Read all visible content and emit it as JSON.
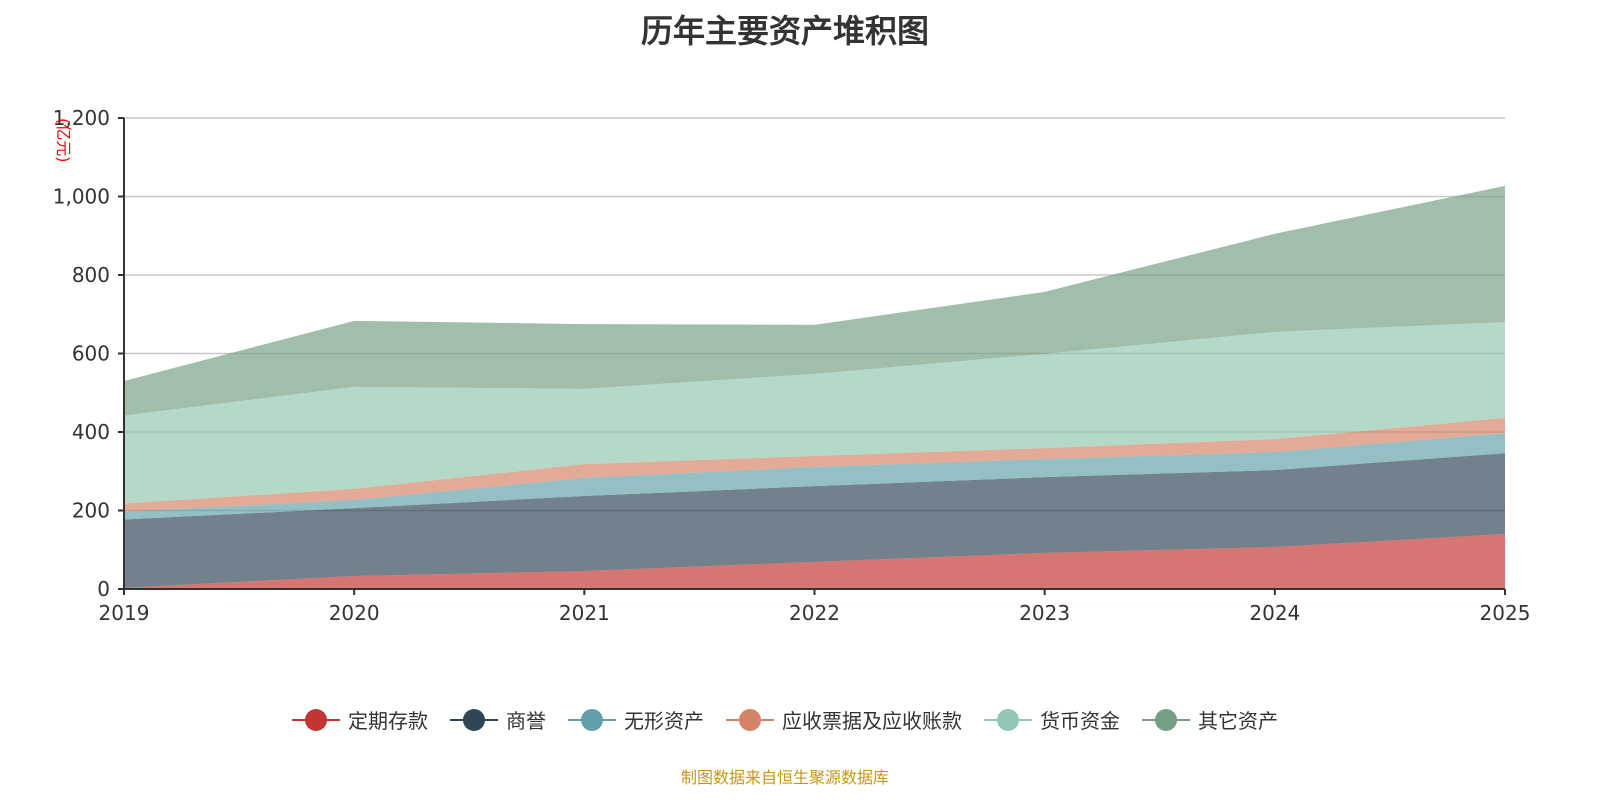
{
  "title": "历年主要资产堆积图",
  "source": "制图数据来自恒生聚源数据库",
  "chart_data": {
    "type": "area",
    "stacked": true,
    "title": "历年主要资产堆积图",
    "ylabel": "(亿元)",
    "ylim": [
      0,
      1200
    ],
    "yticks": [
      0,
      200,
      400,
      600,
      800,
      1000,
      1200
    ],
    "ytick_labels": [
      "0",
      "200",
      "400",
      "600",
      "800",
      "1,000",
      "1,200"
    ],
    "categories": [
      "2019",
      "2020",
      "2021",
      "2022",
      "2023",
      "2024",
      "2025"
    ],
    "grid": true,
    "legend_position": "bottom",
    "series": [
      {
        "name": "定期存款",
        "color": "#c23531",
        "values": [
          3,
          33,
          46,
          69,
          92,
          107,
          140
        ]
      },
      {
        "name": "商誉",
        "color": "#2f4554",
        "values": [
          174,
          173,
          191,
          193,
          193,
          196,
          206
        ]
      },
      {
        "name": "无形资产",
        "color": "#61a0a8",
        "values": [
          20,
          21,
          46,
          49,
          46,
          46,
          51
        ]
      },
      {
        "name": "应收票据及应收账款",
        "color": "#d48265",
        "values": [
          21,
          28,
          35,
          28,
          28,
          33,
          39
        ]
      },
      {
        "name": "货币资金",
        "color": "#91c7ae",
        "values": [
          224,
          260,
          192,
          209,
          240,
          273,
          244
        ]
      },
      {
        "name": "其它资产",
        "color": "#749f83",
        "values": [
          88,
          168,
          165,
          125,
          158,
          250,
          347
        ]
      }
    ]
  }
}
